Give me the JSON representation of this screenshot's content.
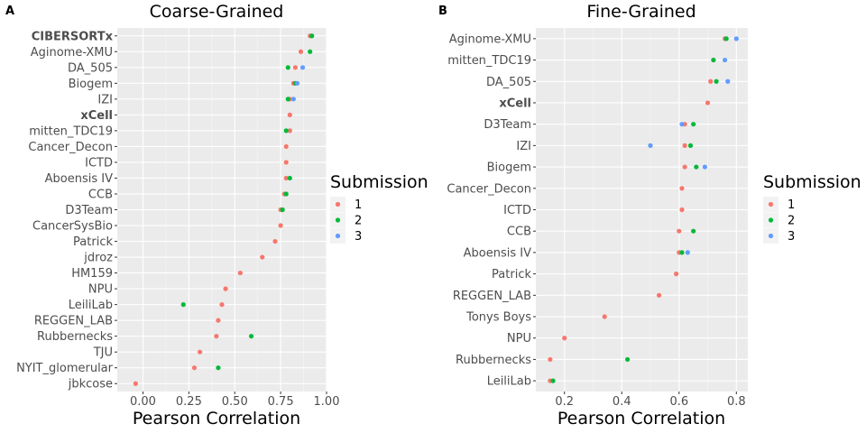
{
  "legend": {
    "title": "Submission",
    "labels": [
      "1",
      "2",
      "3"
    ],
    "colors": [
      "#F8766D",
      "#00BA38",
      "#619CFF"
    ]
  },
  "chart_data": [
    {
      "panel": "A",
      "type": "scatter",
      "title": "Coarse-Grained",
      "xlabel": "Pearson Correlation",
      "ylabel": "",
      "xlim": [
        -0.14,
        1.0
      ],
      "xticks": [
        0,
        0.25,
        0.5,
        0.75,
        1.0
      ],
      "xtick_labels": [
        "0.00",
        "0.25",
        "0.50",
        "0.75",
        "1.00"
      ],
      "grid": true,
      "legend_position": "right",
      "categories": [
        "CIBERSORTx",
        "Aginome-XMU",
        "DA_505",
        "Biogem",
        "IZI",
        "xCell",
        "mitten_TDC19",
        "Cancer_Decon",
        "ICTD",
        "Aboensis IV",
        "CCB",
        "D3Team",
        "CancerSysBio",
        "Patrick",
        "jdroz",
        "HM159",
        "NPU",
        "LeiliLab",
        "REGGEN_LAB",
        "Rubbernecks",
        "TJU",
        "NYIT_glomerular",
        "jbkcose"
      ],
      "bold_categories": [
        "CIBERSORTx",
        "xCell"
      ],
      "series": [
        {
          "name": "1",
          "values": [
            0.91,
            0.86,
            0.83,
            0.82,
            0.8,
            0.8,
            0.8,
            0.78,
            0.78,
            0.78,
            0.77,
            0.75,
            0.75,
            0.72,
            0.65,
            0.53,
            0.45,
            0.43,
            0.41,
            0.4,
            0.31,
            0.28,
            -0.04
          ]
        },
        {
          "name": "2",
          "values": [
            0.92,
            0.91,
            0.79,
            0.83,
            0.79,
            null,
            0.78,
            null,
            null,
            0.8,
            0.78,
            0.76,
            null,
            null,
            null,
            null,
            null,
            0.22,
            null,
            0.59,
            null,
            0.41,
            null
          ]
        },
        {
          "name": "3",
          "values": [
            null,
            null,
            0.87,
            0.84,
            0.82,
            null,
            null,
            null,
            null,
            null,
            null,
            null,
            null,
            null,
            null,
            null,
            null,
            null,
            null,
            null,
            null,
            null,
            null
          ]
        }
      ]
    },
    {
      "panel": "B",
      "type": "scatter",
      "title": "Fine-Grained",
      "xlabel": "Pearson Correlation",
      "ylabel": "",
      "xlim": [
        0.1,
        0.84
      ],
      "xticks": [
        0.2,
        0.4,
        0.6,
        0.8
      ],
      "xtick_labels": [
        "0.2",
        "0.4",
        "0.6",
        "0.8"
      ],
      "grid": true,
      "legend_position": "right",
      "categories": [
        "Aginome-XMU",
        "mitten_TDC19",
        "DA_505",
        "xCell",
        "D3Team",
        "IZI",
        "Biogem",
        "Cancer_Decon",
        "ICTD",
        "CCB",
        "Aboensis IV",
        "Patrick",
        "REGGEN_LAB",
        "Tonys Boys",
        "NPU",
        "Rubbernecks",
        "LeiliLab"
      ],
      "bold_categories": [
        "xCell"
      ],
      "series": [
        {
          "name": "1",
          "values": [
            0.76,
            0.72,
            0.71,
            0.7,
            0.62,
            0.62,
            0.62,
            0.61,
            0.61,
            0.6,
            0.6,
            0.59,
            0.53,
            0.34,
            0.2,
            0.15,
            0.15
          ]
        },
        {
          "name": "2",
          "values": [
            0.765,
            0.72,
            0.73,
            null,
            0.65,
            0.64,
            0.66,
            null,
            null,
            0.65,
            0.61,
            null,
            null,
            null,
            null,
            0.42,
            0.16
          ]
        },
        {
          "name": "3",
          "values": [
            0.8,
            0.76,
            0.77,
            null,
            0.61,
            0.5,
            0.69,
            null,
            null,
            null,
            0.63,
            null,
            null,
            null,
            null,
            null,
            null
          ]
        }
      ]
    }
  ]
}
